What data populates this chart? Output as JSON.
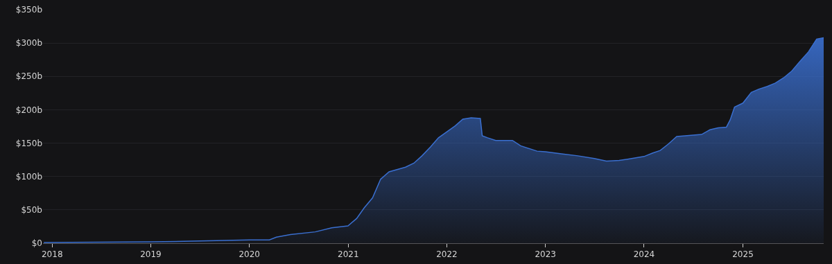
{
  "chart_data": {
    "type": "area",
    "x": [
      "2017-12-01",
      "2019-01-01",
      "2019-06-01",
      "2020-01-01",
      "2020-03-15",
      "2020-04-10",
      "2020-06-01",
      "2020-09-01",
      "2020-11-01",
      "2020-12-31",
      "2021-02-01",
      "2021-03-01",
      "2021-04-01",
      "2021-05-01",
      "2021-06-01",
      "2021-08-01",
      "2021-09-01",
      "2021-10-01",
      "2021-11-01",
      "2021-12-01",
      "2022-02-01",
      "2022-03-01",
      "2022-04-01",
      "2022-05-05",
      "2022-05-12",
      "2022-06-01",
      "2022-07-01",
      "2022-09-01",
      "2022-10-01",
      "2022-12-01",
      "2023-01-01",
      "2023-03-01",
      "2023-05-01",
      "2023-07-01",
      "2023-08-15",
      "2023-10-01",
      "2023-11-01",
      "2024-01-01",
      "2024-02-01",
      "2024-03-01",
      "2024-04-01",
      "2024-05-01",
      "2024-07-01",
      "2024-08-01",
      "2024-09-01",
      "2024-10-01",
      "2024-11-01",
      "2024-11-15",
      "2024-12-01",
      "2025-01-01",
      "2025-02-01",
      "2025-03-01",
      "2025-04-01",
      "2025-05-01",
      "2025-06-01",
      "2025-07-01",
      "2025-08-01",
      "2025-09-01",
      "2025-10-01",
      "2025-10-27"
    ],
    "series": [
      {
        "color": "#3a6fd0",
        "values": [
          1,
          2,
          3,
          5,
          5,
          9,
          13,
          17,
          23,
          26,
          37,
          53,
          68,
          96,
          107,
          114,
          120,
          131,
          144,
          158,
          176,
          186,
          188,
          187,
          161,
          158,
          154,
          154,
          146,
          138,
          137,
          134,
          131,
          127,
          123,
          124,
          126,
          130,
          135,
          139,
          149,
          160,
          162,
          163,
          170,
          173,
          174,
          185,
          204,
          210,
          226,
          231,
          235,
          240,
          248,
          258,
          273,
          287,
          306,
          308
        ]
      }
    ],
    "xlim": [
      "2017-11-28",
      "2025-10-27"
    ],
    "xticks": [
      {
        "value": "2018-01-01",
        "label": "2018"
      },
      {
        "value": "2019-01-01",
        "label": "2019"
      },
      {
        "value": "2020-01-01",
        "label": "2020"
      },
      {
        "value": "2021-01-01",
        "label": "2021"
      },
      {
        "value": "2022-01-01",
        "label": "2022"
      },
      {
        "value": "2023-01-01",
        "label": "2023"
      },
      {
        "value": "2024-01-01",
        "label": "2024"
      },
      {
        "value": "2025-01-01",
        "label": "2025"
      }
    ],
    "ylim": [
      0,
      350
    ],
    "yticks": [
      {
        "value": 0,
        "label": "$0"
      },
      {
        "value": 50,
        "label": "$50b"
      },
      {
        "value": 100,
        "label": "$100b"
      },
      {
        "value": 150,
        "label": "$150b"
      },
      {
        "value": 200,
        "label": "$200b"
      },
      {
        "value": 250,
        "label": "$250b"
      },
      {
        "value": 300,
        "label": "$300b"
      },
      {
        "value": 350,
        "label": "$350b"
      }
    ],
    "grid": "y"
  }
}
